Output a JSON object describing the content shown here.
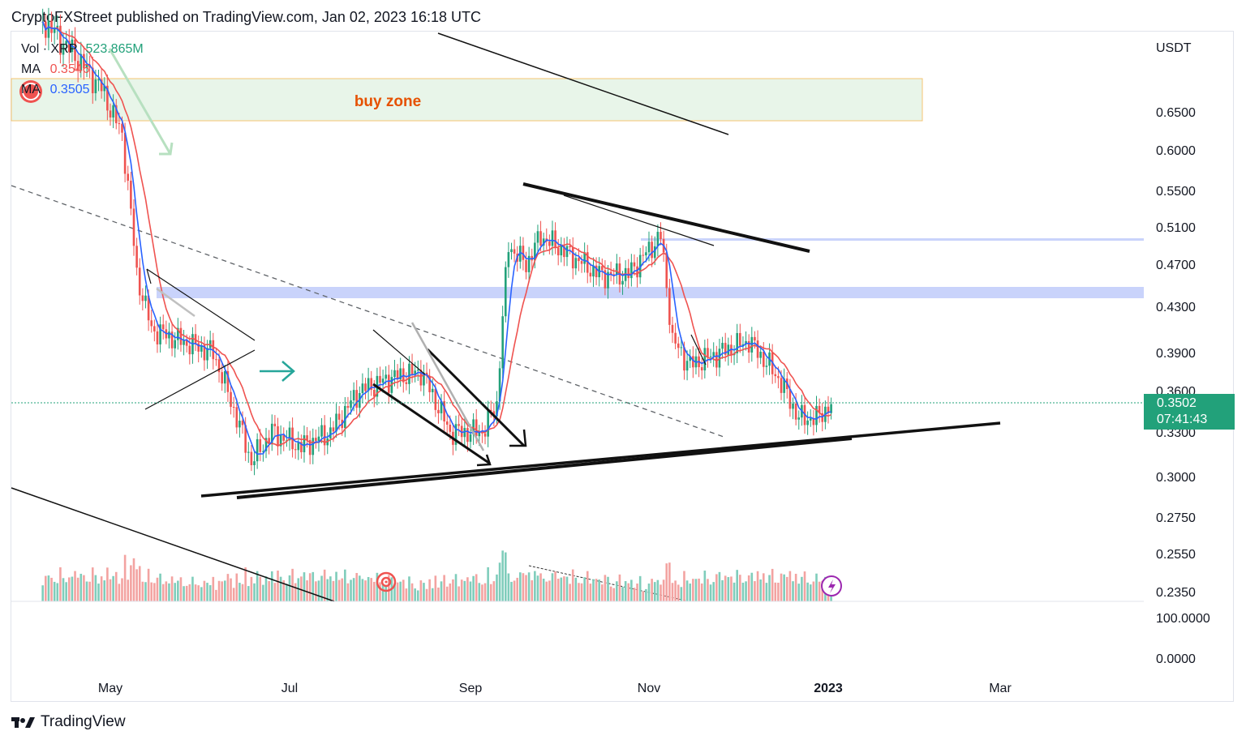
{
  "header": {
    "text": "CryptoFXStreet published on TradingView.com, Jan 02, 2023 16:18 UTC"
  },
  "legend": {
    "vol_label": "Vol · XRP",
    "vol_value": "523.865M",
    "ma1_label": "MA",
    "ma1_value": "0.3546",
    "ma2_label": "MA",
    "ma2_value": "0.3505"
  },
  "annotations": {
    "buy_zone": "buy zone"
  },
  "price_tag": {
    "price": "0.3502",
    "countdown": "07:41:43"
  },
  "footer": {
    "brand": "TradingView"
  },
  "colors": {
    "up": "#22a17a",
    "down": "#ef5350",
    "ma_red": "#ef5350",
    "ma_blue": "#2962ff",
    "buy_zone_fill": "#e8f5e9",
    "buy_zone_border": "#f6c572",
    "band": "#c9d3fb"
  },
  "chart_data": {
    "type": "candlestick",
    "symbol": "XRP",
    "currency_label": "USDT",
    "ylabels": [
      "0.6500",
      "0.6000",
      "0.5500",
      "0.5100",
      "0.4700",
      "0.4300",
      "0.3900",
      "0.3600",
      "0.3300",
      "0.3000",
      "0.2750",
      "0.2550",
      "0.2350"
    ],
    "volume_ylabels": [
      "100.0000",
      "0.0000"
    ],
    "xlabels": [
      "May",
      "Jul",
      "Sep",
      "Nov",
      "2023",
      "Mar"
    ],
    "last_price": 0.3502,
    "series": [
      {
        "name": "XRP close (approx.)",
        "points": [
          [
            "Apr 08",
            0.77
          ],
          [
            "Apr 20",
            0.72
          ],
          [
            "Apr 28",
            0.68
          ],
          [
            "May 05",
            0.62
          ],
          [
            "May 10",
            0.46
          ],
          [
            "May 15",
            0.41
          ],
          [
            "May 25",
            0.4
          ],
          [
            "Jun 05",
            0.39
          ],
          [
            "Jun 13",
            0.34
          ],
          [
            "Jun 18",
            0.31
          ],
          [
            "Jun 25",
            0.33
          ],
          [
            "Jul 05",
            0.32
          ],
          [
            "Jul 15",
            0.33
          ],
          [
            "Jul 25",
            0.36
          ],
          [
            "Aug 05",
            0.37
          ],
          [
            "Aug 15",
            0.375
          ],
          [
            "Aug 25",
            0.33
          ],
          [
            "Sep 05",
            0.33
          ],
          [
            "Sep 10",
            0.35
          ],
          [
            "Sep 14",
            0.49
          ],
          [
            "Sep 20",
            0.47
          ],
          [
            "Sep 25",
            0.5
          ],
          [
            "Oct 05",
            0.48
          ],
          [
            "Oct 15",
            0.46
          ],
          [
            "Oct 25",
            0.46
          ],
          [
            "Nov 05",
            0.5
          ],
          [
            "Nov 09",
            0.4
          ],
          [
            "Nov 15",
            0.38
          ],
          [
            "Nov 25",
            0.39
          ],
          [
            "Dec 05",
            0.4
          ],
          [
            "Dec 15",
            0.37
          ],
          [
            "Dec 22",
            0.34
          ],
          [
            "Dec 28",
            0.34
          ],
          [
            "Jan 02",
            0.3502
          ]
        ]
      }
    ]
  }
}
